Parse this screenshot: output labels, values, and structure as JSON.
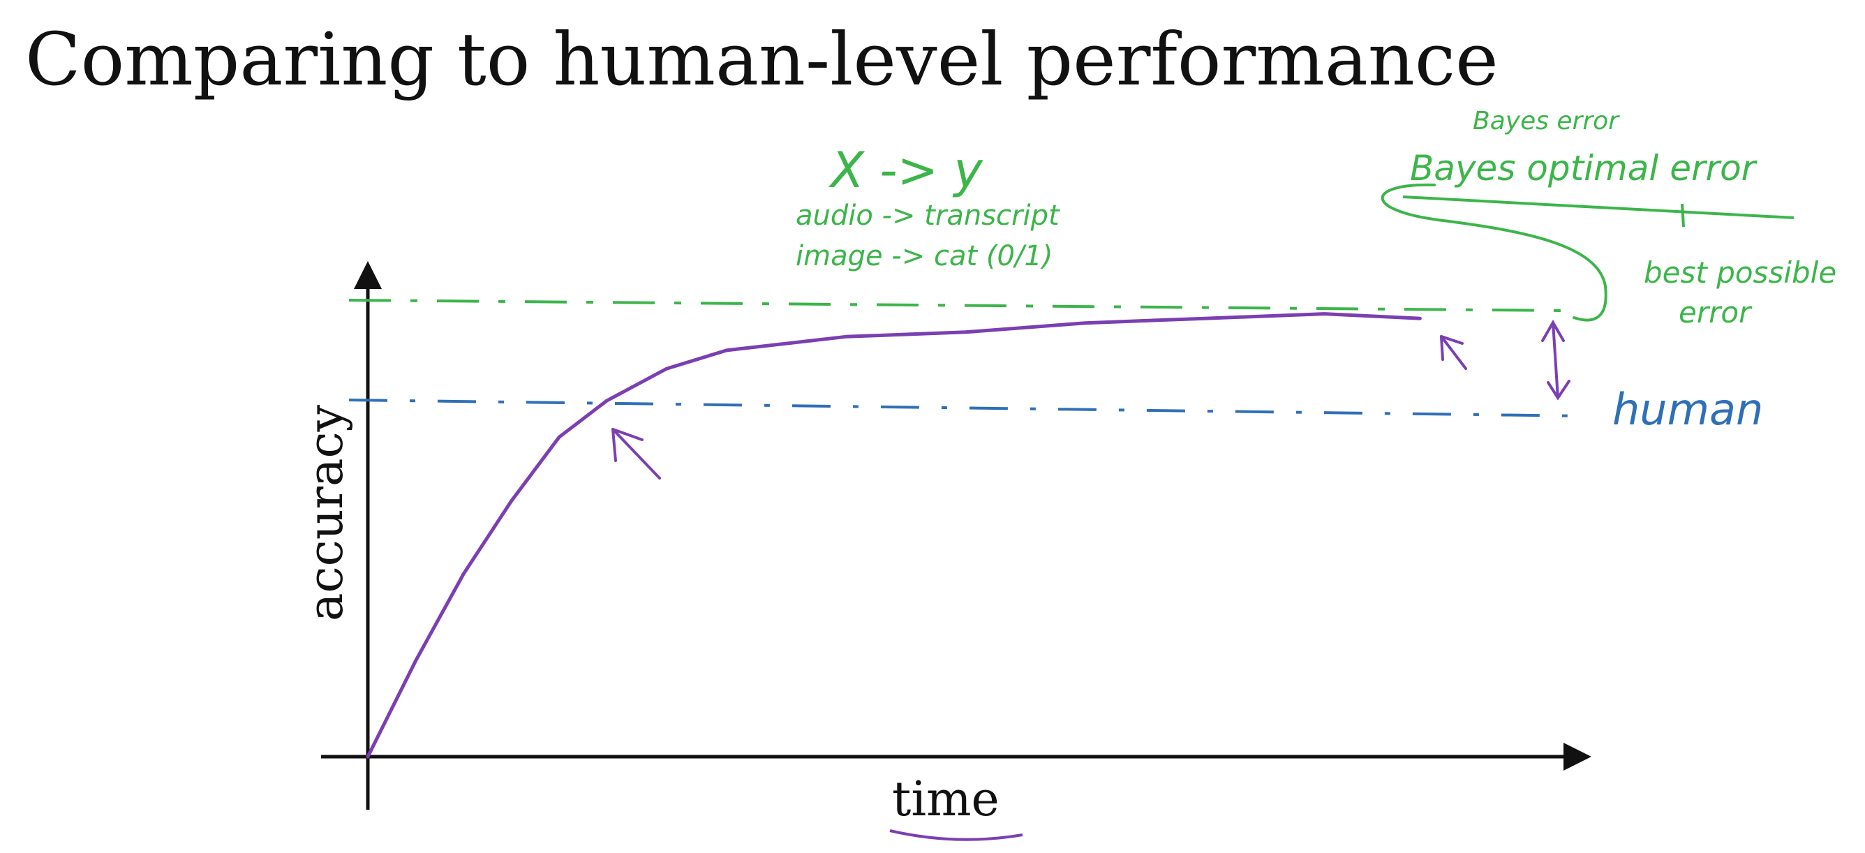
{
  "slide": {
    "title": "Comparing to human-level performance"
  },
  "chart_data": {
    "type": "line",
    "xlabel": "time",
    "ylabel": "accuracy",
    "series": [
      {
        "values": [
          {
            "x": 0.0,
            "y": 0.0
          },
          {
            "x": 0.04,
            "y": 0.21
          },
          {
            "x": 0.08,
            "y": 0.4
          },
          {
            "x": 0.12,
            "y": 0.56
          },
          {
            "x": 0.16,
            "y": 0.7
          },
          {
            "x": 0.2,
            "y": 0.78
          },
          {
            "x": 0.25,
            "y": 0.85
          },
          {
            "x": 0.3,
            "y": 0.89
          },
          {
            "x": 0.4,
            "y": 0.92
          },
          {
            "x": 0.5,
            "y": 0.93
          },
          {
            "x": 0.6,
            "y": 0.95
          },
          {
            "x": 0.7,
            "y": 0.96
          },
          {
            "x": 0.8,
            "y": 0.97
          },
          {
            "x": 0.88,
            "y": 0.96
          }
        ]
      }
    ],
    "reference_lines": {
      "bayes_level": 1.0,
      "human_level": 0.8
    },
    "annotations": {
      "mapping": "X -> y",
      "example_audio": "audio -> transcript",
      "example_image": "image -> cat (0/1)",
      "bayes_error": "Bayes error",
      "bayes_optimal_error": "Bayes optimal error",
      "best_possible": "best possible",
      "error": "error",
      "human": "human"
    },
    "colors": {
      "curve": "#7b3fb3",
      "bayes": "#3cb54a",
      "human": "#2f6fb8",
      "axes": "#111111"
    },
    "grid": false
  }
}
